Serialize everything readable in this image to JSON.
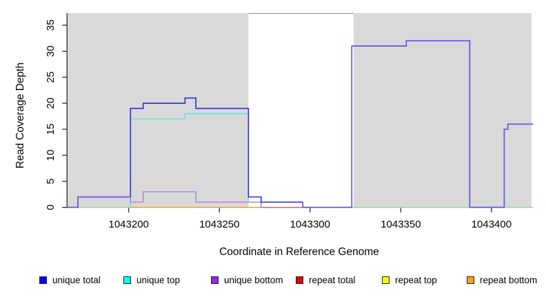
{
  "chart_data": {
    "type": "line",
    "subtype": "step",
    "title": "",
    "xlabel": "Coordinate in Reference Genome",
    "ylabel": "Read Coverage Depth",
    "xlim": [
      1043166,
      1043423
    ],
    "ylim": [
      0,
      37
    ],
    "x_ticks": [
      1043200,
      1043250,
      1043300,
      1043350,
      1043400
    ],
    "y_ticks": [
      0,
      5,
      10,
      15,
      20,
      25,
      30,
      35
    ],
    "grid": false,
    "legend_position": "bottom",
    "panel_background": "#FFFFFF",
    "shaded_regions": {
      "color": "#D9D9D9",
      "ranges": [
        [
          1043166,
          1043266
        ],
        [
          1043324,
          1043422
        ]
      ],
      "gap_top_border_color": "#999999"
    },
    "series": [
      {
        "name": "unique total",
        "color": "#0000F0",
        "width": 1.6,
        "draw": true,
        "segments": [
          {
            "stroke": "#5C4EE2",
            "steps": [
              [
                1043166,
                0
              ],
              [
                1043172,
                2
              ]
            ],
            "x_end": 1043201
          },
          {
            "stroke": "#2A2ADB",
            "steps": [
              [
                1043201,
                2
              ],
              [
                1043201,
                19
              ],
              [
                1043208,
                20
              ],
              [
                1043231,
                21
              ],
              [
                1043237,
                19
              ],
              [
                1043266,
                2
              ],
              [
                1043273,
                1
              ]
            ],
            "x_end": 1043296
          },
          {
            "stroke": "#5C4EE2",
            "steps": [
              [
                1043296,
                1
              ],
              [
                1043296,
                0
              ],
              [
                1043323,
                31
              ],
              [
                1043353,
                32
              ],
              [
                1043388,
                0
              ],
              [
                1043407,
                15
              ],
              [
                1043409,
                16
              ]
            ],
            "x_end": 1043423
          }
        ]
      },
      {
        "name": "unique top",
        "color": "#00FFFF",
        "stroke": "#55E2E8",
        "width": 1.3,
        "draw": true,
        "steps": [
          [
            1043166,
            0
          ],
          [
            1043201,
            17
          ],
          [
            1043231,
            18
          ],
          [
            1043266,
            1
          ],
          [
            1043273,
            0
          ]
        ],
        "x_end": 1043423
      },
      {
        "name": "unique bottom",
        "color": "#A020F0",
        "stroke": "#A877D8",
        "width": 1.3,
        "draw": true,
        "steps": [
          [
            1043166,
            0
          ],
          [
            1043172,
            2
          ],
          [
            1043201,
            1
          ],
          [
            1043208,
            3
          ],
          [
            1043237,
            1
          ],
          [
            1043273,
            0
          ],
          [
            1043323,
            31
          ],
          [
            1043353,
            32
          ],
          [
            1043388,
            0
          ],
          [
            1043407,
            15
          ],
          [
            1043409,
            16
          ]
        ],
        "x_end": 1043423
      },
      {
        "name": "repeat total",
        "color": "#E80000",
        "stroke": "#E05878",
        "width": 1.3,
        "draw": false,
        "steps": [
          [
            1043166,
            0
          ]
        ],
        "x_end": 1043423
      },
      {
        "name": "repeat top",
        "color": "#FFFF00",
        "stroke": "#FFFF00",
        "width": 1.3,
        "draw": false,
        "steps": [
          [
            1043166,
            0
          ]
        ],
        "x_end": 1043423
      },
      {
        "name": "repeat bottom",
        "color": "#FFA020",
        "stroke": "#FF9000",
        "width": 1.3,
        "draw": false,
        "steps": [
          [
            1043166,
            0
          ]
        ],
        "x_end": 1043423
      }
    ],
    "baseline_visible_segments": [
      {
        "color": "#98CE98",
        "from": 1043166,
        "to": 1043201
      },
      {
        "color": "#FF9000",
        "from": 1043201,
        "to": 1043273
      },
      {
        "color": "#E05878",
        "from": 1043273,
        "to": 1043296
      },
      {
        "color": "#98CE98",
        "from": 1043323,
        "to": 1043388
      },
      {
        "color": "#98CE98",
        "from": 1043407,
        "to": 1043423
      }
    ],
    "legend": [
      {
        "label": "unique total",
        "color": "#0000F0"
      },
      {
        "label": "unique top",
        "color": "#00FFFF"
      },
      {
        "label": "unique bottom",
        "color": "#A020F0"
      },
      {
        "label": "repeat total",
        "color": "#E80000"
      },
      {
        "label": "repeat top",
        "color": "#FFFF00"
      },
      {
        "label": "repeat bottom",
        "color": "#FFA020"
      }
    ]
  }
}
